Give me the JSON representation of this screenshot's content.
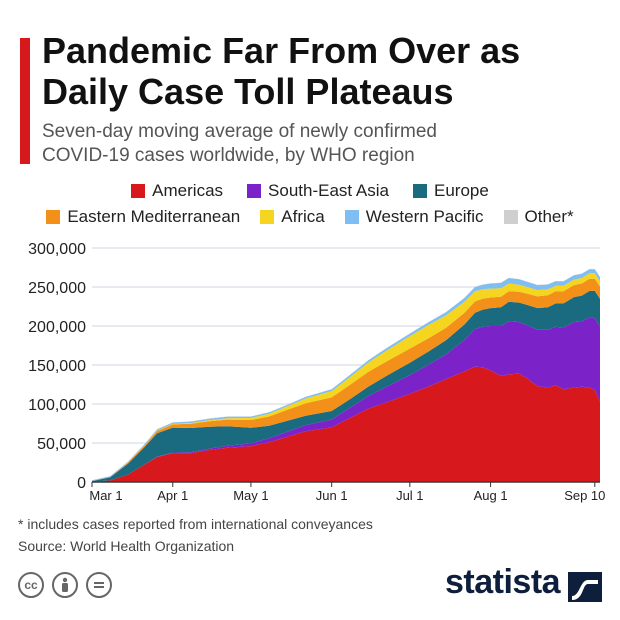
{
  "header": {
    "title_line1": "Pandemic Far From Over as",
    "title_line2": "Daily Case Toll Plateaus",
    "subtitle_line1": "Seven-day moving average of newly confirmed",
    "subtitle_line2": "COVID-19 cases worldwide, by WHO region"
  },
  "legend": {
    "row1": [
      {
        "label": "Americas",
        "color": "#d7191e"
      },
      {
        "label": "South-East Asia",
        "color": "#7b22c9"
      },
      {
        "label": "Europe",
        "color": "#1a6b80"
      }
    ],
    "row2": [
      {
        "label": "Eastern Mediterranean",
        "color": "#f39019"
      },
      {
        "label": "Africa",
        "color": "#f5d51f"
      },
      {
        "label": "Western Pacific",
        "color": "#7fbef2"
      },
      {
        "label": "Other*",
        "color": "#cfcfcf"
      }
    ]
  },
  "chart_data": {
    "type": "area",
    "stacked": true,
    "title": "Pandemic Far From Over as Daily Case Toll Plateaus",
    "ylabel": "Seven-day moving average of newly confirmed cases",
    "ylim": [
      0,
      300000
    ],
    "yticks": [
      "0",
      "50,000",
      "100,000",
      "150,000",
      "200,000",
      "250,000",
      "300,000"
    ],
    "xticks": [
      {
        "label": "Mar 1",
        "day": 0
      },
      {
        "label": "Apr 1",
        "day": 31
      },
      {
        "label": "May 1",
        "day": 61
      },
      {
        "label": "Jun 1",
        "day": 92
      },
      {
        "label": "Jul 1",
        "day": 122
      },
      {
        "label": "Aug 1",
        "day": 153
      },
      {
        "label": "Sep 10",
        "day": 193
      }
    ],
    "x": [
      0,
      7,
      14,
      20,
      25,
      31,
      38,
      45,
      52,
      61,
      68,
      75,
      82,
      92,
      99,
      106,
      113,
      122,
      129,
      136,
      143,
      147,
      150,
      153,
      157,
      160,
      164,
      167,
      171,
      175,
      178,
      181,
      185,
      188,
      191,
      193,
      195
    ],
    "series": [
      {
        "name": "Americas",
        "color": "#d7191e",
        "values": [
          200,
          2000,
          10000,
          22000,
          32000,
          37000,
          37000,
          41000,
          44000,
          46000,
          51000,
          58000,
          65000,
          70000,
          82000,
          94000,
          102000,
          113000,
          122000,
          132000,
          142000,
          148000,
          147000,
          143000,
          136000,
          138000,
          139000,
          133000,
          123000,
          121000,
          124000,
          119000,
          121000,
          122000,
          121000,
          118000,
          103000
        ]
      },
      {
        "name": "South-East Asia",
        "color": "#7b22c9",
        "values": [
          0,
          0,
          50,
          200,
          500,
          800,
          1200,
          1800,
          2500,
          3500,
          5000,
          6500,
          8000,
          10000,
          13000,
          16000,
          20000,
          24000,
          28000,
          32000,
          40000,
          48000,
          52000,
          57000,
          64000,
          68000,
          66000,
          68000,
          72000,
          74000,
          75000,
          79000,
          84000,
          84000,
          90000,
          92000,
          96000
        ]
      },
      {
        "name": "Europe",
        "color": "#1a6b80",
        "values": [
          1000,
          4000,
          14000,
          22000,
          30000,
          32000,
          31000,
          28000,
          25000,
          20000,
          16000,
          14000,
          12000,
          11000,
          11000,
          12000,
          14000,
          16000,
          17000,
          18000,
          20000,
          21000,
          22000,
          23000,
          24000,
          25000,
          25000,
          26000,
          28000,
          29000,
          30000,
          31000,
          32000,
          33000,
          34000,
          35000,
          36000
        ]
      },
      {
        "name": "Eastern Mediterranean",
        "color": "#f39019",
        "values": [
          100,
          400,
          1200,
          2000,
          3000,
          4000,
          5500,
          7000,
          8500,
          10000,
          12000,
          14000,
          16000,
          17500,
          18500,
          19000,
          18500,
          18000,
          17000,
          16000,
          15000,
          14500,
          14000,
          13500,
          13500,
          13500,
          14000,
          14500,
          15000,
          15500,
          15500,
          15500,
          15500,
          15500,
          15500,
          15500,
          15500
        ]
      },
      {
        "name": "Africa",
        "color": "#f5d51f",
        "values": [
          0,
          0,
          100,
          300,
          500,
          800,
          1000,
          1300,
          1800,
          2500,
          3500,
          4500,
          6000,
          8000,
          10000,
          12000,
          14000,
          16000,
          17000,
          16000,
          14000,
          13000,
          12000,
          11500,
          11000,
          10000,
          9000,
          8500,
          8000,
          7500,
          7000,
          7000,
          7000,
          7000,
          7000,
          7000,
          7000
        ]
      },
      {
        "name": "Western Pacific",
        "color": "#7fbef2",
        "values": [
          1000,
          1000,
          1200,
          1300,
          1500,
          1700,
          1900,
          2100,
          2000,
          1800,
          1800,
          1900,
          2100,
          2400,
          2700,
          2800,
          3000,
          3200,
          3500,
          4000,
          5000,
          5500,
          6000,
          6500,
          6800,
          7000,
          7000,
          6800,
          6500,
          6200,
          6000,
          5800,
          5600,
          5500,
          5400,
          5300,
          5200
        ]
      },
      {
        "name": "Other*",
        "color": "#cfcfcf",
        "values": [
          100,
          300,
          400,
          300,
          300,
          300,
          300,
          300,
          300,
          300,
          300,
          300,
          300,
          300,
          300,
          300,
          300,
          300,
          300,
          300,
          300,
          300,
          300,
          300,
          300,
          300,
          300,
          300,
          300,
          300,
          300,
          300,
          300,
          300,
          300,
          300,
          300
        ]
      }
    ]
  },
  "footer": {
    "note": "* includes cases reported from international conveyances",
    "source": "Source: World Health Organization",
    "brand": "statista"
  }
}
